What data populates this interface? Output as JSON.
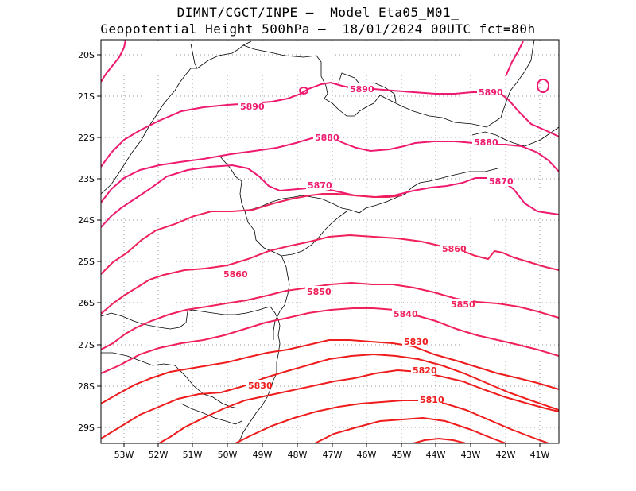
{
  "header": {
    "line1": "DIMNT/CGCT/INPE –  Model Eta05_M01_",
    "line2": "Geopotential Height 500hPa –  18/01/2024 00UTC fct=80h"
  },
  "axes": {
    "x_ticks": [
      "53W",
      "52W",
      "51W",
      "50W",
      "49W",
      "48W",
      "47W",
      "46W",
      "45W",
      "44W",
      "43W",
      "42W",
      "41W"
    ],
    "y_ticks": [
      "20S",
      "21S",
      "22S",
      "23S",
      "24S",
      "25S",
      "26S",
      "27S",
      "28S",
      "29S"
    ]
  },
  "contours": {
    "colors": {
      "high": "#ee1a6f",
      "mid": "#f0205a",
      "low": "#ee1c1c"
    },
    "labels": [
      "5890",
      "5890",
      "5890",
      "5880",
      "5880",
      "5870",
      "5870",
      "5860",
      "5860",
      "5850",
      "5850",
      "5840",
      "5830",
      "5830",
      "5820",
      "5810"
    ]
  }
}
